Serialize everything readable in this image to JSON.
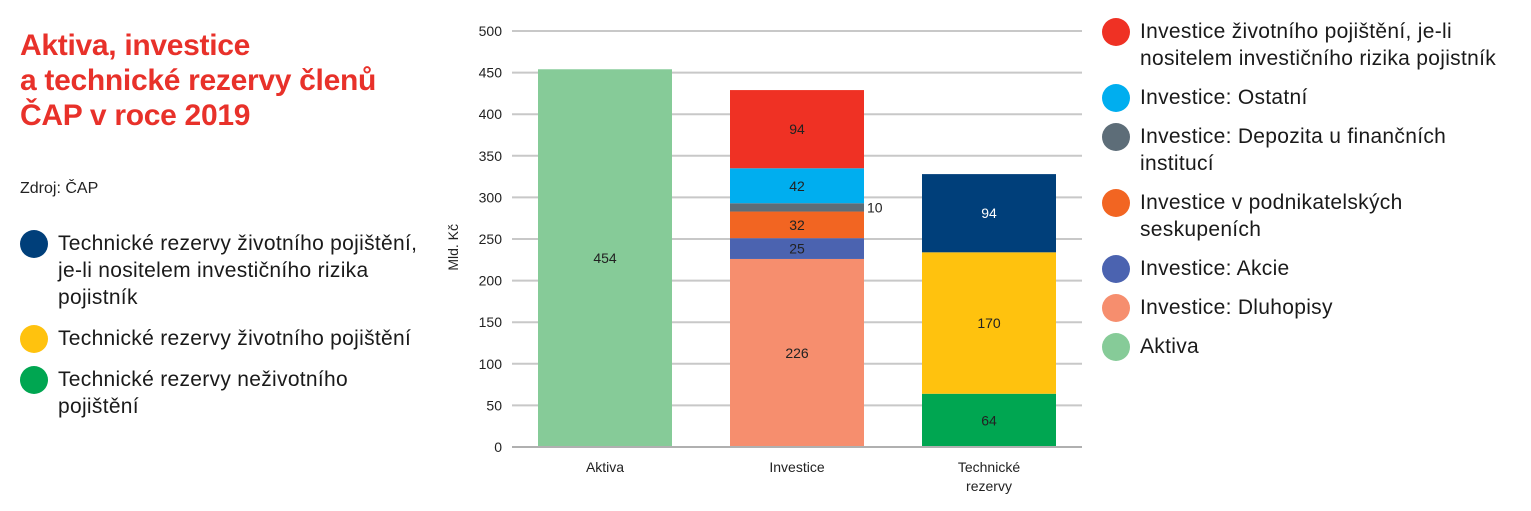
{
  "title": "Aktiva, investice\na technické rezervy členů\nČAP v roce 2019",
  "source": "Zdroj: ČAP",
  "legend_left": [
    {
      "label": "Technické rezervy životního pojištění, je-li nositelem investičního rizika pojistník",
      "color": "#003f7a"
    },
    {
      "label": "Technické rezervy životního pojištění",
      "color": "#ffc20e"
    },
    {
      "label": "Technické rezervy neživotního pojištění",
      "color": "#00a651"
    }
  ],
  "legend_right": [
    {
      "label": "Investice životního pojištění, je-li nositelem investičního rizika pojistník",
      "color": "#ef3124"
    },
    {
      "label": "Investice: Ostatní",
      "color": "#00aeef"
    },
    {
      "label": "Investice: Depozita u finančních institucí",
      "color": "#5d6d78"
    },
    {
      "label": "Investice v podnikatelských seskupeních",
      "color": "#f26522"
    },
    {
      "label": "Investice: Akcie",
      "color": "#4b63b0"
    },
    {
      "label": "Investice: Dluhopisy",
      "color": "#f68e6e"
    },
    {
      "label": "Aktiva",
      "color": "#86cb98"
    }
  ],
  "chart_data": {
    "type": "bar",
    "stacked": true,
    "ylabel": "Mld. Kč",
    "ylim": [
      0,
      500
    ],
    "yticks": [
      0,
      50,
      100,
      150,
      200,
      250,
      300,
      350,
      400,
      450,
      500
    ],
    "grid": true,
    "categories": [
      "Aktiva",
      "Investice",
      "Technické\nrezervy"
    ],
    "stacks": [
      [
        {
          "series": "Aktiva",
          "value": 454,
          "label": "454",
          "color": "#86cb98"
        }
      ],
      [
        {
          "series": "Investice: Dluhopisy",
          "value": 226,
          "label": "226",
          "color": "#f68e6e"
        },
        {
          "series": "Investice: Akcie",
          "value": 25,
          "label": "25",
          "color": "#4b63b0"
        },
        {
          "series": "Investice v podnikatelských seskupeních",
          "value": 32,
          "label": "32",
          "color": "#f26522"
        },
        {
          "series": "Investice: Depozita u finančních institucí",
          "value": 10,
          "label": "10",
          "color": "#5d6d78",
          "label_outside": true
        },
        {
          "series": "Investice: Ostatní",
          "value": 42,
          "label": "42",
          "color": "#00aeef"
        },
        {
          "series": "Investice životního pojištění, je-li nositelem investičního rizika pojistník",
          "value": 94,
          "label": "94",
          "color": "#ef3124"
        }
      ],
      [
        {
          "series": "Technické rezervy neživotního pojištění",
          "value": 64,
          "label": "64",
          "color": "#00a651"
        },
        {
          "series": "Technické rezervy životního pojištění",
          "value": 170,
          "label": "170",
          "color": "#ffc20e"
        },
        {
          "series": "Technické rezervy životního pojištění, je-li nositelem investičního rizika pojistník",
          "value": 94,
          "label": "94",
          "color": "#003f7a",
          "label_color": "#ffffff"
        }
      ]
    ]
  }
}
